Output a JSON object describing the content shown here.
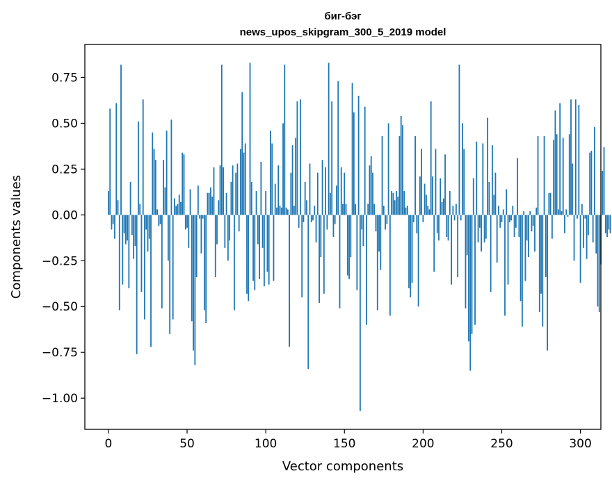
{
  "chart_data": {
    "type": "bar",
    "title": [
      "биг-бэг",
      "news_upos_skipgram_300_5_2019 model"
    ],
    "xlabel": "Vector components",
    "ylabel": "Components values",
    "xlim": [
      -15,
      313
    ],
    "ylim": [
      -1.17,
      0.93
    ],
    "grid": false,
    "legend": "none",
    "color": "#1f77b4",
    "x_ticks": [
      0,
      50,
      100,
      150,
      200,
      250,
      300
    ],
    "x_tick_labels": [
      "0",
      "50",
      "100",
      "150",
      "200",
      "250",
      "300"
    ],
    "y_ticks": [
      0.75,
      0.5,
      0.25,
      0.0,
      -0.25,
      -0.5,
      -0.75,
      -1.0
    ],
    "y_tick_labels": [
      "0.75",
      "0.50",
      "0.25",
      "0.00",
      "−0.25",
      "−0.50",
      "−0.75",
      "−1.00"
    ],
    "values": [
      0.13,
      0.58,
      -0.08,
      -0.05,
      -0.13,
      0.61,
      0.08,
      -0.52,
      0.82,
      -0.38,
      -0.1,
      -0.16,
      -0.14,
      -0.4,
      0.18,
      -0.11,
      -0.24,
      -0.17,
      -0.76,
      0.51,
      0.06,
      -0.42,
      0.63,
      -0.57,
      -0.08,
      -0.2,
      -0.13,
      -0.72,
      0.45,
      0.36,
      0.3,
      0.03,
      -0.06,
      -0.05,
      -0.51,
      0.3,
      0.15,
      0.46,
      -0.25,
      -0.65,
      0.52,
      -0.57,
      0.09,
      0.05,
      0.06,
      0.11,
      0.07,
      0.34,
      0.33,
      -0.08,
      -0.07,
      -0.18,
      0.14,
      -0.58,
      -0.74,
      -0.82,
      -0.34,
      0.16,
      -0.02,
      -0.21,
      -0.02,
      -0.52,
      -0.59,
      0.12,
      0.12,
      0.15,
      0.1,
      0.26,
      -0.34,
      -0.16,
      0.08,
      0.27,
      0.82,
      0.26,
      -0.18,
      0.12,
      -0.25,
      -0.14,
      0.18,
      0.27,
      -0.52,
      0.23,
      0.28,
      -0.09,
      0.36,
      0.67,
      0.34,
      0.39,
      -0.43,
      -0.47,
      0.83,
      0.18,
      -0.36,
      -0.41,
      0.13,
      -0.16,
      -0.35,
      0.29,
      -0.18,
      -0.39,
      0.13,
      -0.31,
      -0.38,
      0.46,
      0.39,
      -0.36,
      0.17,
      0.04,
      0.27,
      0.05,
      0.04,
      0.5,
      0.82,
      0.04,
      0.03,
      -0.72,
      0.23,
      0.38,
      0.05,
      0.42,
      0.62,
      -0.07,
      0.63,
      -0.45,
      -0.04,
      0.18,
      0.08,
      -0.84,
      0.28,
      -0.04,
      -0.03,
      0.05,
      -0.15,
      0.23,
      -0.48,
      -0.23,
      0.3,
      -0.43,
      0.26,
      -0.08,
      0.83,
      0.12,
      0.62,
      -0.12,
      -0.05,
      0.16,
      0.73,
      -0.51,
      0.26,
      0.06,
      0.23,
      0.06,
      -0.33,
      -0.35,
      -0.23,
      0.72,
      0.56,
      0.06,
      -0.41,
      0.65,
      -1.07,
      -0.08,
      -0.17,
      0.59,
      -0.6,
      0.06,
      0.27,
      0.32,
      0.23,
      0.06,
      -0.09,
      -0.52,
      -0.2,
      -0.3,
      0.43,
      0.05,
      -0.08,
      -0.05,
      0.5,
      -0.55,
      0.13,
      0.12,
      0.08,
      0.13,
      0.1,
      0.43,
      0.54,
      0.49,
      0.13,
      0.04,
      0.05,
      -0.4,
      -0.45,
      -0.37,
      -0.04,
      0.43,
      -0.1,
      -0.5,
      0.21,
      0.36,
      -0.04,
      0.17,
      0.11,
      0.05,
      0.03,
      0.62,
      0.21,
      -0.31,
      0.36,
      -0.1,
      -0.14,
      0.2,
      0.07,
      0.09,
      0.33,
      -0.12,
      -0.14,
      0.13,
      -0.38,
      0.05,
      -0.03,
      0.06,
      -0.34,
      0.82,
      -0.03,
      0.5,
      0.36,
      -0.51,
      -0.22,
      -0.69,
      -0.85,
      -0.65,
      0.2,
      -0.6,
      0.4,
      -0.15,
      -0.07,
      -0.2,
      0.39,
      -0.15,
      -0.13,
      0.53,
      0.18,
      -0.42,
      0.38,
      0.11,
      0.23,
      -0.26,
      0.05,
      -0.07,
      -0.04,
      0.03,
      -0.55,
      0.14,
      -0.38,
      -0.04,
      -0.03,
      0.05,
      -0.12,
      -0.07,
      0.31,
      -0.12,
      -0.47,
      -0.61,
      0.02,
      -0.36,
      -0.14,
      -0.23,
      0.02,
      -0.09,
      -0.06,
      -0.2,
      0.04,
      0.43,
      -0.53,
      -0.43,
      -0.61,
      0.43,
      -0.34,
      -0.74,
      0.12,
      0.12,
      -0.13,
      0.41,
      0.57,
      0.44,
      0.03,
      0.61,
      0.02,
      0.42,
      -0.1,
      0.03,
      -0.01,
      0.44,
      0.63,
      0.28,
      -0.25,
      0.63,
      -0.02,
      0.6,
      -0.37,
      0.06,
      -0.18,
      -0.02,
      -0.24,
      -0.11,
      0.34,
      0.35,
      -0.15,
      0.48,
      -0.21,
      -0.5,
      -0.53,
      -0.27,
      0.24,
      0.37,
      -0.1,
      -0.12,
      -0.08,
      -0.1
    ]
  }
}
